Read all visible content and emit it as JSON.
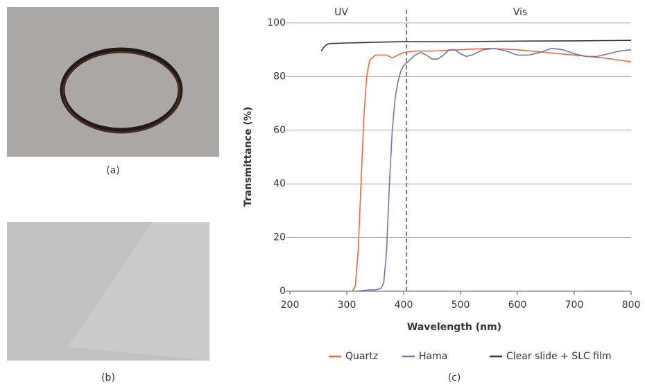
{
  "captions": [
    "(a)",
    "(b)",
    "(c)"
  ],
  "chart_data": {
    "type": "line",
    "xlabel": "Wavelength (nm)",
    "ylabel": "Transmittance (%)",
    "annotations": [
      "UV",
      "Vis"
    ],
    "vline": 405,
    "xlim": [
      200,
      800
    ],
    "ylim": [
      0,
      100
    ],
    "xticks": [
      200,
      300,
      400,
      500,
      600,
      700,
      800
    ],
    "yticks": [
      0,
      20,
      40,
      60,
      80,
      100
    ],
    "grid": true,
    "legend": "bottom",
    "series": [
      {
        "name": "Quartz",
        "color": "#ee6a3c",
        "x": [
          310,
          315,
          320,
          325,
          330,
          335,
          340,
          350,
          360,
          370,
          380,
          390,
          400,
          420,
          450,
          500,
          550,
          600,
          650,
          700,
          750,
          800
        ],
        "values": [
          0,
          2,
          15,
          40,
          65,
          80,
          86,
          88,
          88,
          88,
          87,
          88,
          89,
          89.5,
          89.5,
          90,
          90.5,
          90,
          89,
          88,
          87,
          85.5
        ]
      },
      {
        "name": "Hama",
        "color": "#6f74bb",
        "x": [
          315,
          340,
          350,
          360,
          365,
          370,
          375,
          380,
          385,
          390,
          395,
          400,
          410,
          420,
          430,
          440,
          450,
          460,
          470,
          480,
          490,
          500,
          510,
          520,
          540,
          560,
          580,
          600,
          620,
          640,
          660,
          680,
          700,
          720,
          740,
          760,
          780,
          800
        ],
        "values": [
          0,
          0.5,
          0.5,
          1,
          3,
          15,
          40,
          60,
          72,
          78,
          82,
          84,
          86,
          88,
          89,
          88,
          86.5,
          86.5,
          88,
          90,
          90,
          88.5,
          87.5,
          88,
          90,
          90.5,
          89.5,
          88,
          88,
          89,
          90.5,
          90,
          88.5,
          87.5,
          87.5,
          88.5,
          89.5,
          90
        ]
      },
      {
        "name": "Clear slide + SLC film",
        "color": "#333333",
        "x": [
          255,
          260,
          265,
          270,
          300,
          350,
          400,
          500,
          600,
          700,
          800
        ],
        "values": [
          89.5,
          91,
          92,
          92.3,
          92.5,
          92.8,
          93,
          93,
          93.2,
          93.3,
          93.5
        ]
      }
    ]
  }
}
